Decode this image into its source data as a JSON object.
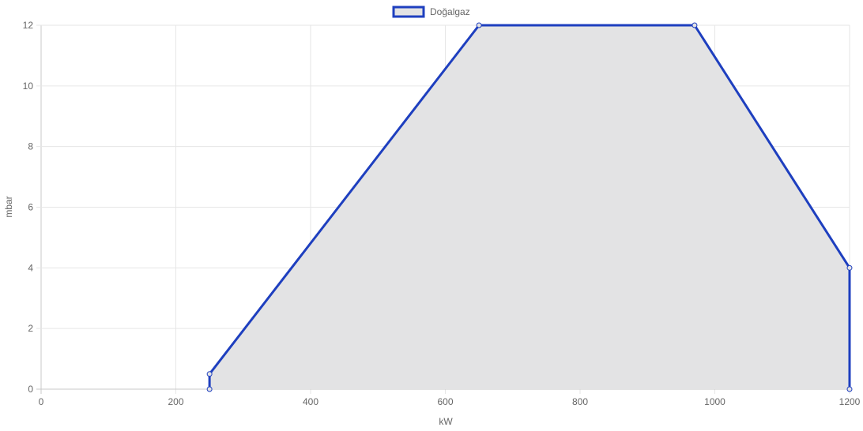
{
  "chart_data": {
    "type": "area",
    "xlabel": "kW",
    "ylabel": "mbar",
    "xlim": [
      0,
      1200
    ],
    "ylim": [
      0,
      12
    ],
    "x_ticks": [
      0,
      200,
      400,
      600,
      800,
      1000,
      1200
    ],
    "y_ticks": [
      0,
      2,
      4,
      6,
      8,
      10,
      12
    ],
    "grid": true,
    "legend_position": "top-center",
    "series": [
      {
        "name": "Doğalgaz",
        "color": "#1e3fbf",
        "fill": "#e3e3e4",
        "points": [
          {
            "x": 250,
            "y": 0
          },
          {
            "x": 250,
            "y": 0.5
          },
          {
            "x": 650,
            "y": 12
          },
          {
            "x": 970,
            "y": 12
          },
          {
            "x": 1200,
            "y": 4
          },
          {
            "x": 1200,
            "y": 0
          }
        ]
      }
    ]
  }
}
